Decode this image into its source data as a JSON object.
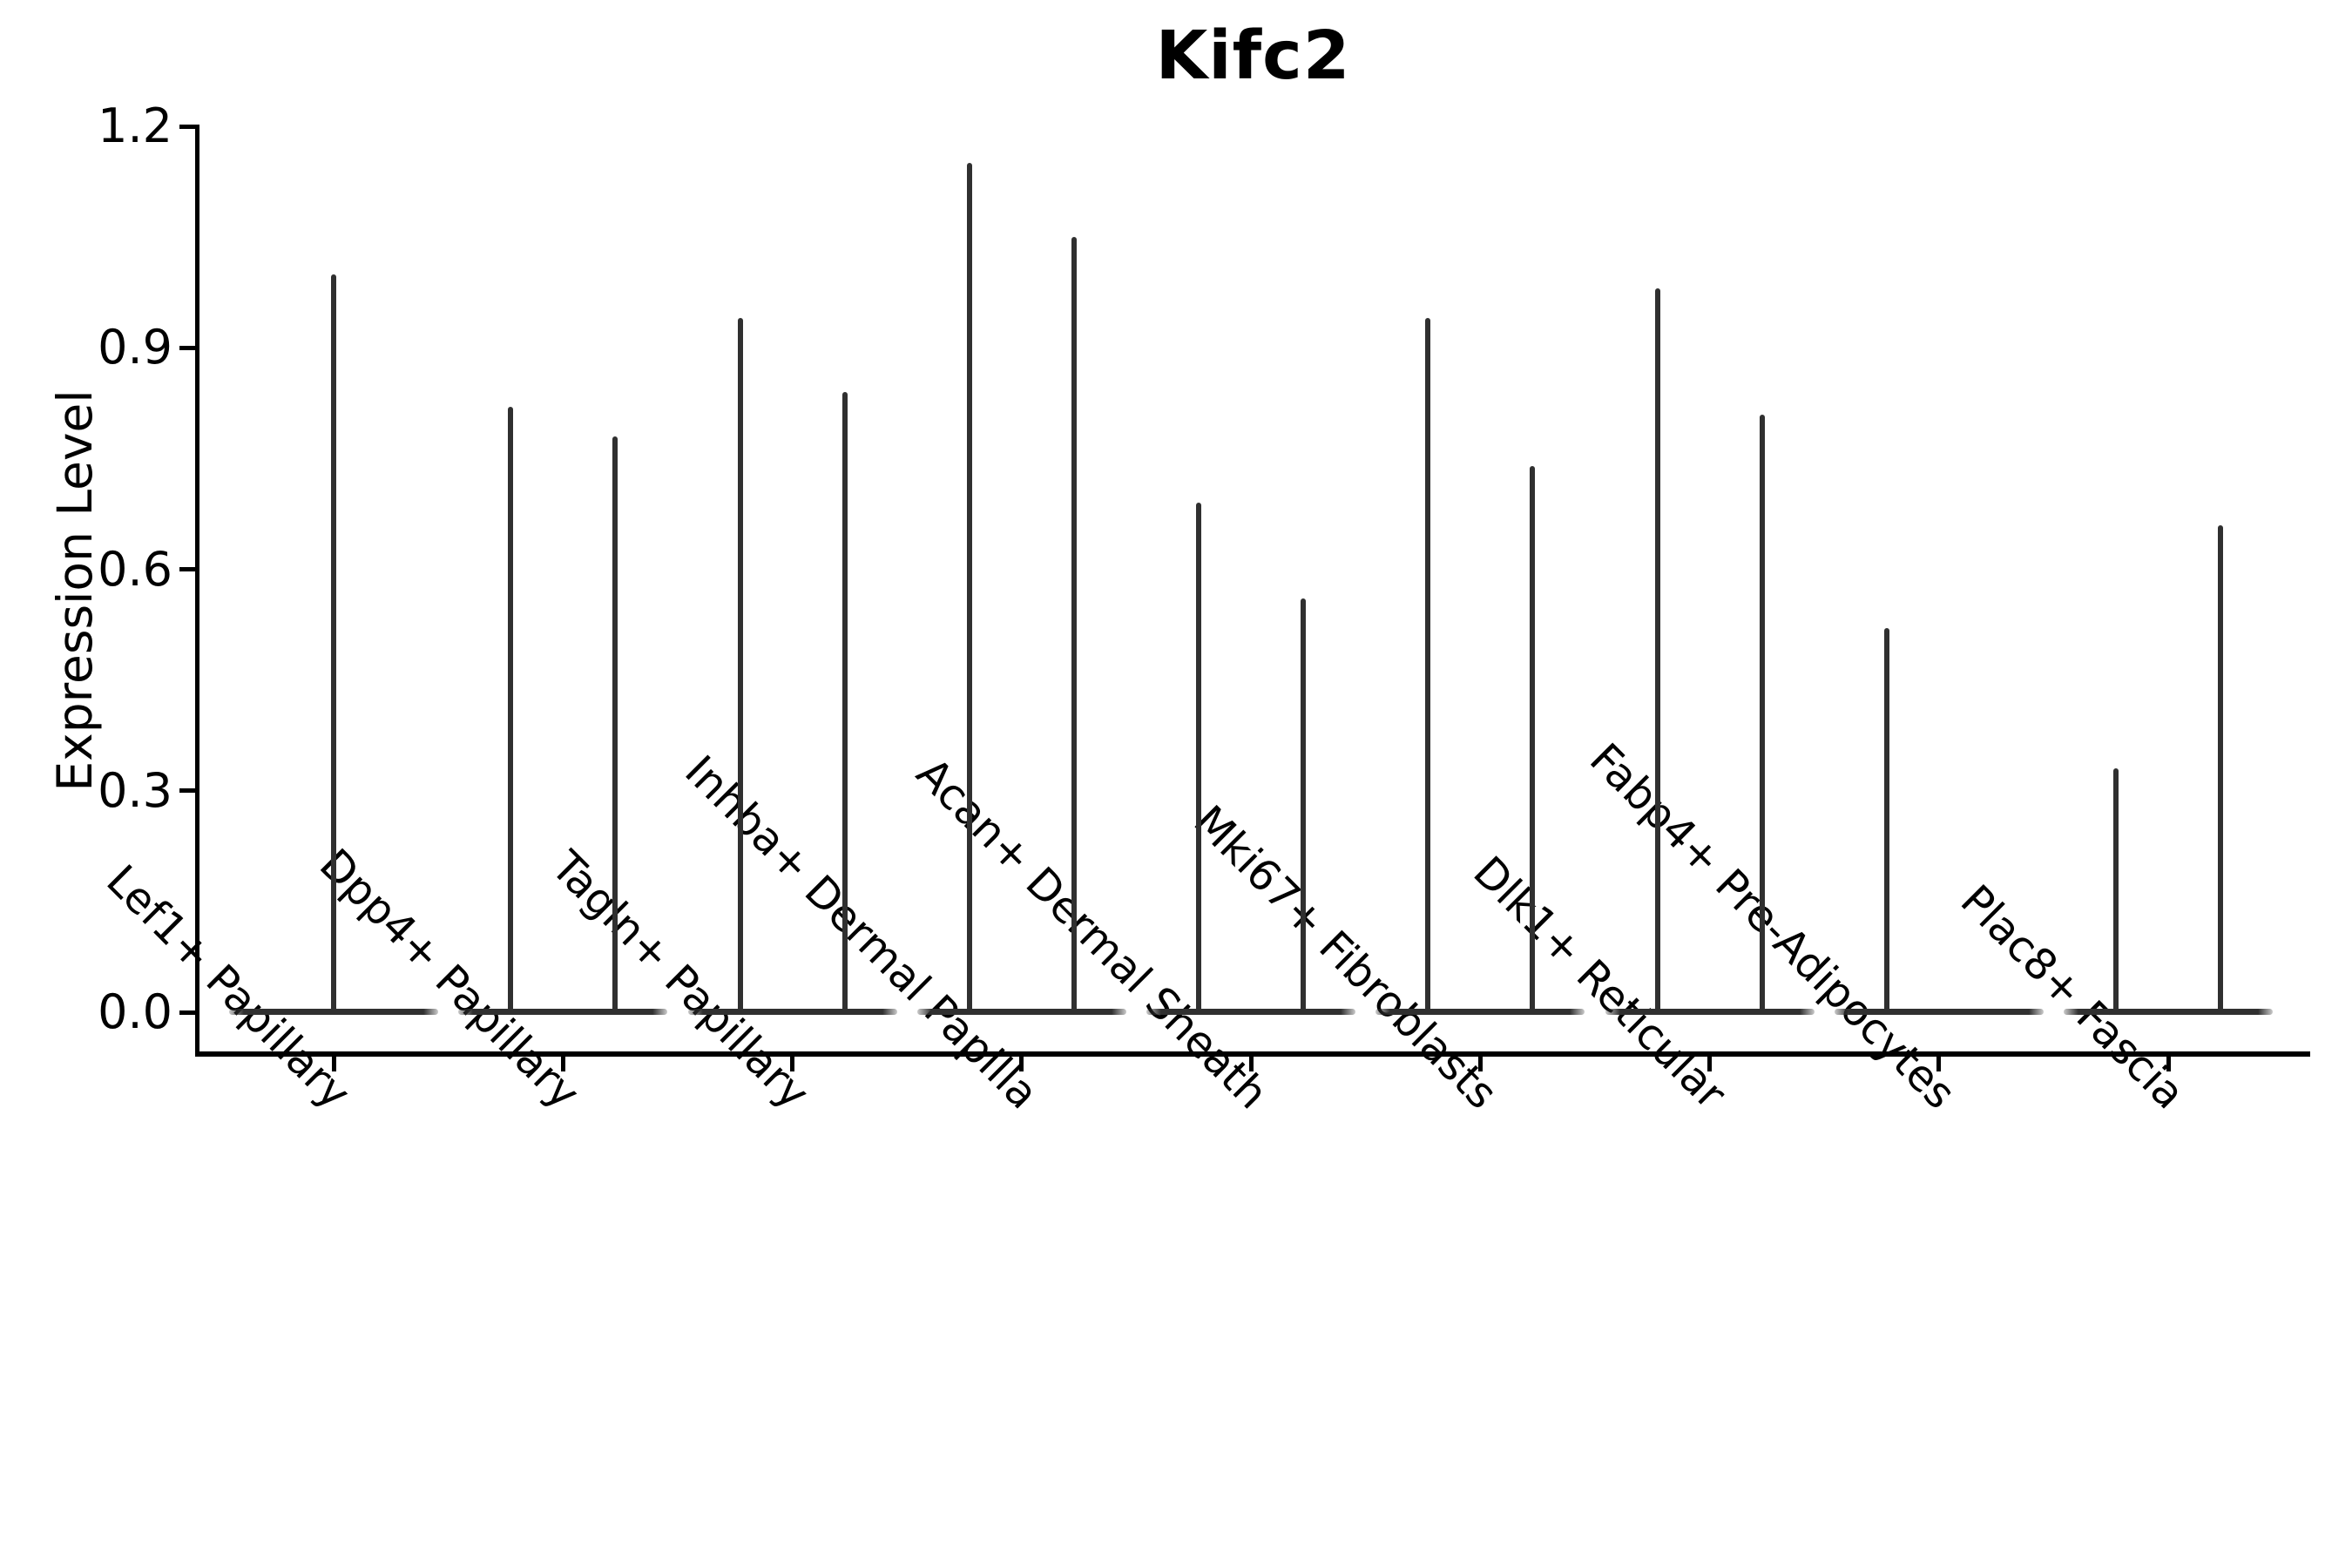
{
  "title": "Kifc2",
  "ylabel": "Expression Level",
  "colors": {
    "violin": "#303030",
    "axis": "#000000",
    "text": "#000000",
    "background": "#ffffff"
  },
  "chart_data": {
    "type": "violin",
    "title": "Kifc2",
    "xlabel": "",
    "ylabel": "Expression Level",
    "ylim": [
      0,
      1.2
    ],
    "yticks": [
      0.0,
      0.3,
      0.6,
      0.9,
      1.2
    ],
    "ytick_labels": [
      "0.0",
      "0.3",
      "0.6",
      "0.9",
      "1.2"
    ],
    "grid": false,
    "legend_position": "none",
    "x_label_rotation_deg": 45,
    "categories": [
      "Lef1+ Papillary",
      "Dpp4+ Papillary",
      "Tagln+ Papillary",
      "Inhba+ Dermal Papilla",
      "Acan+ Dermal Sheath",
      "Mki67+ Fibroblasts",
      "Dlk1+ Reticular",
      "Fabp4+ Pre-Adipocytes",
      "Plac8+ Fascia"
    ],
    "series": [
      {
        "name": "Lef1+ Papillary",
        "baseline_value": 0.0,
        "spikes": [
          {
            "pos": "center",
            "value": 1.0
          }
        ]
      },
      {
        "name": "Dpp4+ Papillary",
        "baseline_value": 0.0,
        "spikes": [
          {
            "pos": "left",
            "value": 0.82
          },
          {
            "pos": "right",
            "value": 0.78
          }
        ]
      },
      {
        "name": "Tagln+ Papillary",
        "baseline_value": 0.0,
        "spikes": [
          {
            "pos": "left",
            "value": 0.94
          },
          {
            "pos": "right",
            "value": 0.84
          }
        ]
      },
      {
        "name": "Inhba+ Dermal Papilla",
        "baseline_value": 0.0,
        "spikes": [
          {
            "pos": "left",
            "value": 1.15
          },
          {
            "pos": "right",
            "value": 1.05
          }
        ]
      },
      {
        "name": "Acan+ Dermal Sheath",
        "baseline_value": 0.0,
        "spikes": [
          {
            "pos": "left",
            "value": 0.69
          },
          {
            "pos": "right",
            "value": 0.56
          }
        ]
      },
      {
        "name": "Mki67+ Fibroblasts",
        "baseline_value": 0.0,
        "spikes": [
          {
            "pos": "left",
            "value": 0.94
          },
          {
            "pos": "right",
            "value": 0.74
          }
        ]
      },
      {
        "name": "Dlk1+ Reticular",
        "baseline_value": 0.0,
        "spikes": [
          {
            "pos": "left",
            "value": 0.98
          },
          {
            "pos": "right",
            "value": 0.81
          }
        ]
      },
      {
        "name": "Fabp4+ Pre-Adipocytes",
        "baseline_value": 0.0,
        "spikes": [
          {
            "pos": "left",
            "value": 0.52
          }
        ]
      },
      {
        "name": "Plac8+ Fascia",
        "baseline_value": 0.0,
        "spikes": [
          {
            "pos": "left",
            "value": 0.33
          },
          {
            "pos": "right",
            "value": 0.66
          }
        ]
      }
    ]
  }
}
